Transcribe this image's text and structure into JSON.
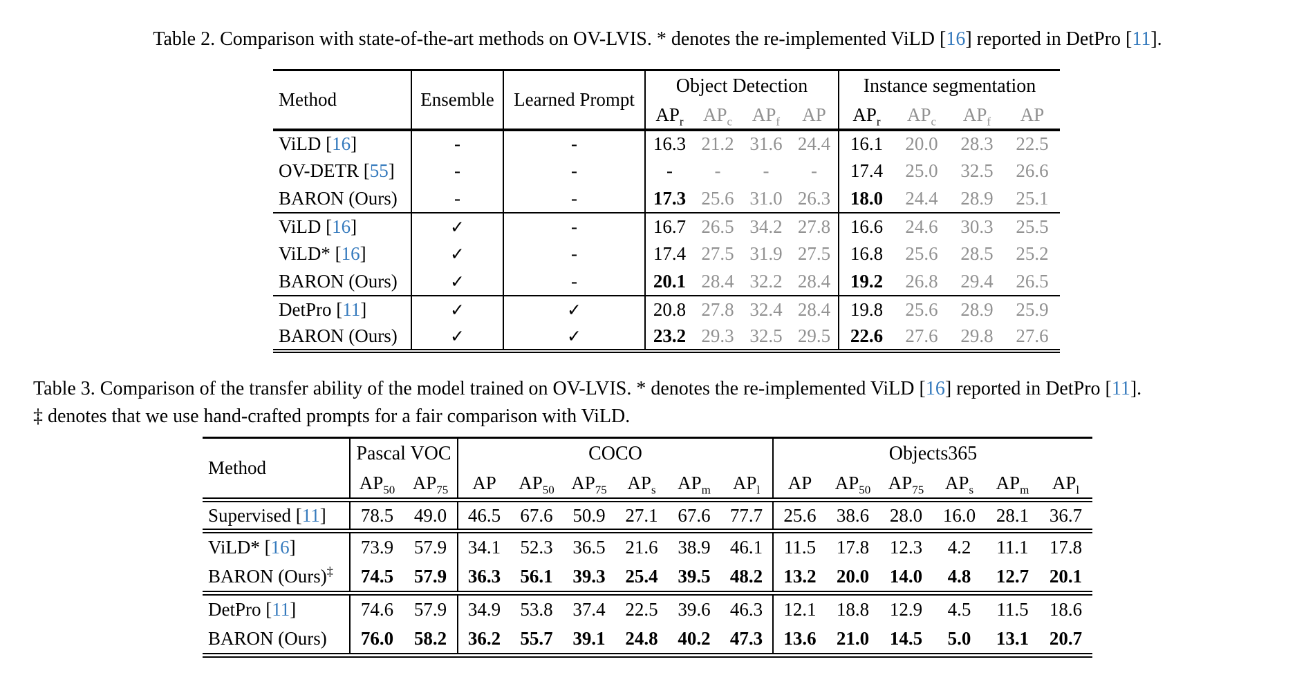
{
  "colors": {
    "citation": "#357abd",
    "muted_metric": "#919191",
    "ink": "#000000",
    "background": "#ffffff"
  },
  "punct": {
    "open": " [",
    "close": "]",
    "dash": "-",
    "check": "✓"
  },
  "table2": {
    "caption": [
      {
        "t": "Table 2. Comparison with state-of-the-art methods on OV-LVIS. * denotes the re-implemented ViLD ["
      },
      {
        "t": "16",
        "cite": true
      },
      {
        "t": "] reported in DetPro ["
      },
      {
        "t": "11",
        "cite": true
      },
      {
        "t": "]."
      }
    ],
    "head": {
      "method": "Method",
      "ensemble": "Ensemble",
      "learned_prompt": "Learned Prompt",
      "groups": [
        "Object Detection",
        "Instance segmentation"
      ],
      "metrics": [
        {
          "b": "AP",
          "s": "r"
        },
        {
          "b": "AP",
          "s": "c"
        },
        {
          "b": "AP",
          "s": "f"
        },
        {
          "b": "AP",
          "s": ""
        }
      ]
    },
    "rows": [
      {
        "method": "ViLD",
        "cite": "16",
        "ens": "dash",
        "lp": "dash",
        "od": [
          "16.3",
          "21.2",
          "31.6",
          "24.4"
        ],
        "is": [
          "16.1",
          "20.0",
          "28.3",
          "22.5"
        ]
      },
      {
        "method": "OV-DETR",
        "cite": "55",
        "ens": "dash",
        "lp": "dash",
        "od": [
          "-",
          "-",
          "-",
          "-"
        ],
        "is": [
          "17.4",
          "25.0",
          "32.5",
          "26.6"
        ]
      },
      {
        "method": "BARON (Ours)",
        "ens": "dash",
        "lp": "dash",
        "bold_rare": true,
        "od": [
          "17.3",
          "25.6",
          "31.0",
          "26.3"
        ],
        "is": [
          "18.0",
          "24.4",
          "28.9",
          "25.1"
        ]
      },
      {
        "method": "ViLD",
        "cite": "16",
        "ens": "check",
        "lp": "dash",
        "group_start": true,
        "od": [
          "16.7",
          "26.5",
          "34.2",
          "27.8"
        ],
        "is": [
          "16.6",
          "24.6",
          "30.3",
          "25.5"
        ]
      },
      {
        "method": "ViLD*",
        "cite": "16",
        "ens": "check",
        "lp": "dash",
        "od": [
          "17.4",
          "27.5",
          "31.9",
          "27.5"
        ],
        "is": [
          "16.8",
          "25.6",
          "28.5",
          "25.2"
        ]
      },
      {
        "method": "BARON (Ours)",
        "ens": "check",
        "lp": "dash",
        "bold_rare": true,
        "od": [
          "20.1",
          "28.4",
          "32.2",
          "28.4"
        ],
        "is": [
          "19.2",
          "26.8",
          "29.4",
          "26.5"
        ]
      },
      {
        "method": "DetPro",
        "cite": "11",
        "ens": "check",
        "lp": "check",
        "group_start": true,
        "od": [
          "20.8",
          "27.8",
          "32.4",
          "28.4"
        ],
        "is": [
          "19.8",
          "25.6",
          "28.9",
          "25.9"
        ]
      },
      {
        "method": "BARON (Ours)",
        "ens": "check",
        "lp": "check",
        "bold_rare": true,
        "od": [
          "23.2",
          "29.3",
          "32.5",
          "29.5"
        ],
        "is": [
          "22.6",
          "27.6",
          "29.8",
          "27.6"
        ]
      }
    ]
  },
  "table3": {
    "caption_line1": [
      {
        "t": "Table 3. Comparison of the transfer ability of the model trained on OV-LVIS. * denotes the re-implemented ViLD ["
      },
      {
        "t": "16",
        "cite": true
      },
      {
        "t": "] reported in DetPro ["
      },
      {
        "t": "11",
        "cite": true
      },
      {
        "t": "]."
      }
    ],
    "caption_line2": [
      {
        "t": "‡ denotes that we use hand-crafted prompts for a fair comparison with ViLD."
      }
    ],
    "head": {
      "method": "Method",
      "groups": [
        {
          "label": "Pascal VOC",
          "metrics": [
            {
              "b": "AP",
              "s": "50"
            },
            {
              "b": "AP",
              "s": "75"
            }
          ]
        },
        {
          "label": "COCO",
          "metrics": [
            {
              "b": "AP",
              "s": ""
            },
            {
              "b": "AP",
              "s": "50"
            },
            {
              "b": "AP",
              "s": "75"
            },
            {
              "b": "AP",
              "s": "s"
            },
            {
              "b": "AP",
              "s": "m"
            },
            {
              "b": "AP",
              "s": "l"
            }
          ]
        },
        {
          "label": "Objects365",
          "metrics": [
            {
              "b": "AP",
              "s": ""
            },
            {
              "b": "AP",
              "s": "50"
            },
            {
              "b": "AP",
              "s": "75"
            },
            {
              "b": "AP",
              "s": "s"
            },
            {
              "b": "AP",
              "s": "m"
            },
            {
              "b": "AP",
              "s": "l"
            }
          ]
        }
      ]
    },
    "rows": [
      {
        "method": "Supervised",
        "cite": "11",
        "vals": [
          "78.5",
          "49.0",
          "46.5",
          "67.6",
          "50.9",
          "27.1",
          "67.6",
          "77.7",
          "25.6",
          "38.6",
          "28.0",
          "16.0",
          "28.1",
          "36.7"
        ]
      },
      {
        "method": "ViLD*",
        "cite": "16",
        "group_start": true,
        "vals": [
          "73.9",
          "57.9",
          "34.1",
          "52.3",
          "36.5",
          "21.6",
          "38.9",
          "46.1",
          "11.5",
          "17.8",
          "12.3",
          "4.2",
          "11.1",
          "17.8"
        ]
      },
      {
        "method": "BARON (Ours)",
        "sup": "‡",
        "bold": true,
        "vals": [
          "74.5",
          "57.9",
          "36.3",
          "56.1",
          "39.3",
          "25.4",
          "39.5",
          "48.2",
          "13.2",
          "20.0",
          "14.0",
          "4.8",
          "12.7",
          "20.1"
        ]
      },
      {
        "method": "DetPro",
        "cite": "11",
        "group_start": true,
        "vals": [
          "74.6",
          "57.9",
          "34.9",
          "53.8",
          "37.4",
          "22.5",
          "39.6",
          "46.3",
          "12.1",
          "18.8",
          "12.9",
          "4.5",
          "11.5",
          "18.6"
        ]
      },
      {
        "method": "BARON (Ours)",
        "bold": true,
        "vals": [
          "76.0",
          "58.2",
          "36.2",
          "55.7",
          "39.1",
          "24.8",
          "40.2",
          "47.3",
          "13.6",
          "21.0",
          "14.5",
          "5.0",
          "13.1",
          "20.7"
        ]
      }
    ]
  }
}
